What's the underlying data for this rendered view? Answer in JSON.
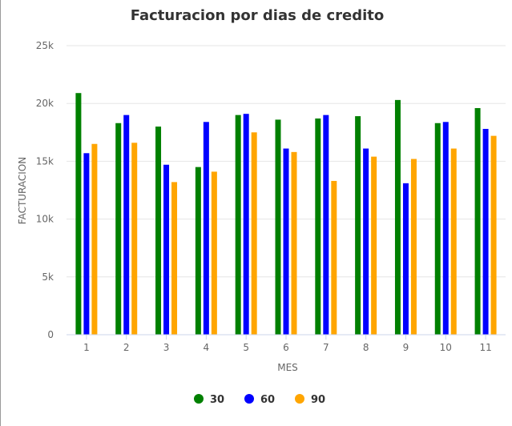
{
  "chart_data": {
    "type": "bar",
    "title": "Facturacion por dias de credito",
    "xlabel": "MES",
    "ylabel": "FACTURACION",
    "categories": [
      "1",
      "2",
      "3",
      "4",
      "5",
      "6",
      "7",
      "8",
      "9",
      "10",
      "11"
    ],
    "y_ticks": [
      "0",
      "5k",
      "10k",
      "15k",
      "20k",
      "25k"
    ],
    "ylim": [
      0,
      25000
    ],
    "grid": true,
    "legend_position": "bottom",
    "series": [
      {
        "name": "30",
        "color": "#008000",
        "values": [
          20900,
          18300,
          18000,
          14500,
          19000,
          18600,
          18700,
          18900,
          20300,
          18300,
          19600
        ]
      },
      {
        "name": "60",
        "color": "#0000ff",
        "values": [
          15700,
          19000,
          14700,
          18400,
          19100,
          16100,
          19000,
          16100,
          13100,
          18400,
          17800
        ]
      },
      {
        "name": "90",
        "color": "#ffa500",
        "values": [
          16500,
          16600,
          13200,
          14100,
          17500,
          15800,
          13300,
          15400,
          15200,
          16100,
          17200
        ]
      }
    ]
  }
}
